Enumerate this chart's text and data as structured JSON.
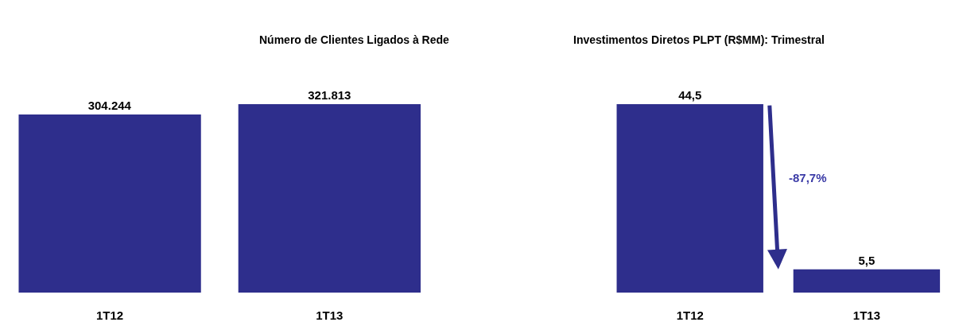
{
  "chart_data": [
    {
      "type": "bar",
      "title": "Número de Clientes Ligados à Rede",
      "categories": [
        "1T12",
        "1T13"
      ],
      "values": [
        304244,
        321813
      ],
      "value_labels": [
        "304.244",
        "321.813"
      ],
      "color": "#2e2e8c"
    },
    {
      "type": "bar",
      "title": "Investimentos Diretos PLPT (R$MM): Trimestral",
      "categories": [
        "1T12",
        "1T13"
      ],
      "values": [
        44.5,
        5.5
      ],
      "value_labels": [
        "44,5",
        "5,5"
      ],
      "color": "#2e2e8c",
      "annotations": [
        "-87,7%"
      ]
    }
  ]
}
